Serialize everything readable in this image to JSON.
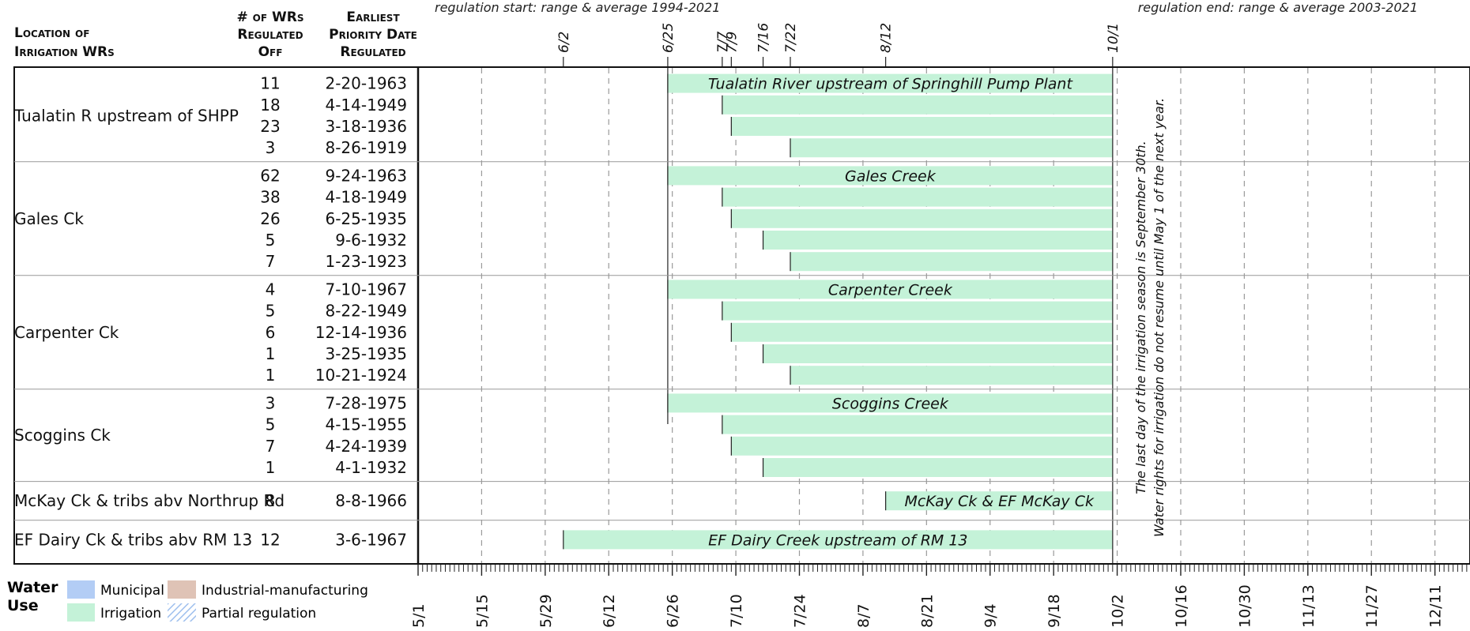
{
  "header": {
    "location_line1": "Location of",
    "location_line2": "Irrigation WRs",
    "count_line1": "# of WRs",
    "count_line2": "Regulated",
    "count_line3": "Off",
    "date_line1": "Earliest",
    "date_line2": "Priority Date",
    "date_line3": "Regulated",
    "note_start": "regulation start: range & average 1994-2021",
    "note_end": "regulation end: range & average 2003-2021"
  },
  "season_note": {
    "line1": "The last day of the irrigation season is September 30th.",
    "line2": "Water rights for irrigation do not resume until May 1 of the next year."
  },
  "legend": {
    "title_line1": "Water",
    "title_line2": "Use",
    "items": [
      {
        "label": "Municipal",
        "color": "#b3cdf5"
      },
      {
        "label": "Industrial-manufacturing",
        "color": "#dfc3b6"
      },
      {
        "label": "Irrigation",
        "color": "#c4f2d8"
      },
      {
        "label": "Partial regulation",
        "color": "#cfe0f7"
      }
    ]
  },
  "colors": {
    "irrigation": "#c4f2d8",
    "grid": "#9a9a9a",
    "frame": "#111111",
    "group_divider": "#999999"
  },
  "chart_data": {
    "type": "bar",
    "x_axis_type": "date (month/day)",
    "xlim": [
      "5/1",
      "12/18"
    ],
    "x_tick_labels": [
      "5/1",
      "5/15",
      "5/29",
      "6/12",
      "6/26",
      "7/10",
      "7/24",
      "8/7",
      "8/21",
      "9/4",
      "9/18",
      "10/2",
      "10/16",
      "10/30",
      "11/13",
      "11/27",
      "12/11"
    ],
    "top_marker_labels": [
      "6/2",
      "6/25",
      "7/7",
      "7/9",
      "7/16",
      "7/22",
      "8/12",
      "10/1"
    ],
    "gridlines": "vertical dashed",
    "groups": [
      {
        "location": "Tualatin R upstream of SHPP",
        "bar_label": "Tualatin River upstream of Springhill Pump Plant",
        "rows": [
          {
            "count": "11",
            "date": "2-20-1963",
            "start": "6/25",
            "end": "10/1"
          },
          {
            "count": "18",
            "date": "4-14-1949",
            "start": "7/7",
            "end": "10/1"
          },
          {
            "count": "23",
            "date": "3-18-1936",
            "start": "7/9",
            "end": "10/1"
          },
          {
            "count": "3",
            "date": "8-26-1919",
            "start": "7/22",
            "end": "10/1"
          }
        ]
      },
      {
        "location": "Gales Ck",
        "bar_label": "Gales Creek",
        "rows": [
          {
            "count": "62",
            "date": "9-24-1963",
            "start": "6/25",
            "end": "10/1"
          },
          {
            "count": "38",
            "date": "4-18-1949",
            "start": "7/7",
            "end": "10/1"
          },
          {
            "count": "26",
            "date": "6-25-1935",
            "start": "7/9",
            "end": "10/1"
          },
          {
            "count": "5",
            "date": "9-6-1932",
            "start": "7/16",
            "end": "10/1"
          },
          {
            "count": "7",
            "date": "1-23-1923",
            "start": "7/22",
            "end": "10/1"
          }
        ]
      },
      {
        "location": "Carpenter Ck",
        "bar_label": "Carpenter Creek",
        "rows": [
          {
            "count": "4",
            "date": "7-10-1967",
            "start": "6/25",
            "end": "10/1"
          },
          {
            "count": "5",
            "date": "8-22-1949",
            "start": "7/7",
            "end": "10/1"
          },
          {
            "count": "6",
            "date": "12-14-1936",
            "start": "7/9",
            "end": "10/1"
          },
          {
            "count": "1",
            "date": "3-25-1935",
            "start": "7/16",
            "end": "10/1"
          },
          {
            "count": "1",
            "date": "10-21-1924",
            "start": "7/22",
            "end": "10/1"
          }
        ]
      },
      {
        "location": "Scoggins Ck",
        "bar_label": "Scoggins Creek",
        "rows": [
          {
            "count": "3",
            "date": "7-28-1975",
            "start": "6/25",
            "end": "10/1"
          },
          {
            "count": "5",
            "date": "4-15-1955",
            "start": "7/7",
            "end": "10/1"
          },
          {
            "count": "7",
            "date": "4-24-1939",
            "start": "7/9",
            "end": "10/1"
          },
          {
            "count": "1",
            "date": "4-1-1932",
            "start": "7/16",
            "end": "10/1"
          }
        ]
      },
      {
        "location": "McKay Ck & tribs abv Northrup Rd",
        "bar_label": "McKay Ck  & EF McKay Ck",
        "rows": [
          {
            "count": "8",
            "date": "8-8-1966",
            "start": "8/12",
            "end": "10/1"
          }
        ]
      },
      {
        "location": "EF Dairy Ck & tribs abv RM 13",
        "bar_label": "EF Dairy Creek upstream of RM 13",
        "rows": [
          {
            "count": "12",
            "date": "3-6-1967",
            "start": "6/2",
            "end": "10/1"
          }
        ]
      }
    ]
  }
}
